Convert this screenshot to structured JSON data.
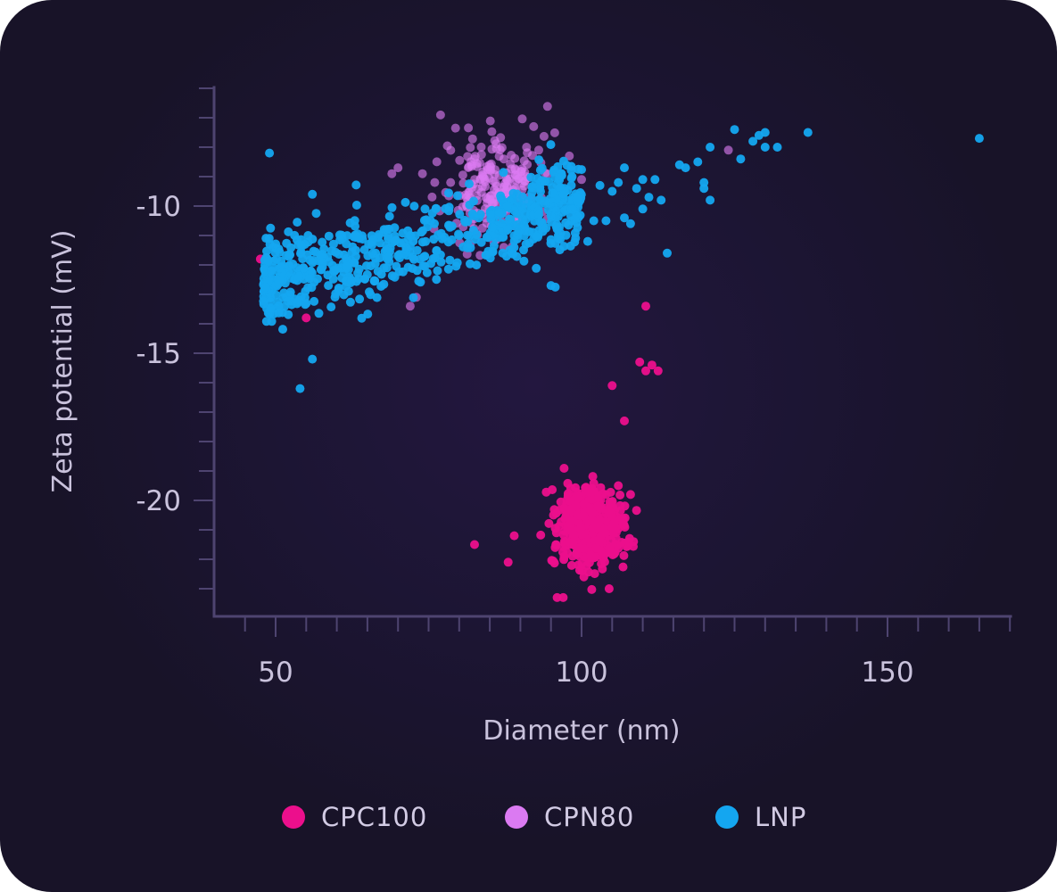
{
  "chart_data": {
    "type": "scatter",
    "title": "",
    "xlabel": "Diameter (nm)",
    "ylabel": "Zeta potential (mV)",
    "xlim": [
      40,
      170
    ],
    "ylim": [
      -24,
      -6
    ],
    "xticks": [
      50,
      100,
      150
    ],
    "yticks": [
      -10,
      -15,
      -20
    ],
    "xtick_labels": [
      "50",
      "100",
      "150"
    ],
    "ytick_labels": [
      "-10",
      "-15",
      "-20"
    ],
    "grid": false,
    "legend_position": "bottom",
    "series": [
      {
        "name": "CPC100",
        "color": "#ec0f8c",
        "cluster": {
          "n": 520,
          "cx": 101.5,
          "sx": 2.6,
          "cy": -20.9,
          "sy": 0.65
        },
        "points": [
          [
            47.5,
            -11.8
          ],
          [
            55,
            -13.8
          ],
          [
            82.5,
            -21.5
          ],
          [
            105,
            -16.1
          ],
          [
            107,
            -17.3
          ],
          [
            109.5,
            -15.3
          ],
          [
            110.5,
            -15.6
          ],
          [
            111.5,
            -15.4
          ],
          [
            112.5,
            -15.6
          ],
          [
            110.5,
            -13.4
          ],
          [
            96,
            -23.3
          ],
          [
            97,
            -23.3
          ],
          [
            104.5,
            -23.0
          ],
          [
            88,
            -22.1
          ],
          [
            89,
            -21.2
          ],
          [
            106,
            -19.5
          ],
          [
            108,
            -19.8
          ],
          [
            108.5,
            -21.4
          ]
        ]
      },
      {
        "name": "CPN80",
        "color": "#db7af2",
        "cluster": {
          "n": 220,
          "cx": 86.5,
          "sx": 4.2,
          "cy": -9.4,
          "sy": 0.9
        },
        "points": [
          [
            74,
            -8.9
          ],
          [
            76,
            -9.2
          ],
          [
            72,
            -13.4
          ],
          [
            73,
            -13.1
          ],
          [
            70,
            -8.7
          ],
          [
            69,
            -8.9
          ],
          [
            124,
            -8.1
          ],
          [
            98,
            -8.3
          ],
          [
            100,
            -9.1
          ],
          [
            93,
            -8.1
          ],
          [
            91,
            -8.0
          ]
        ]
      },
      {
        "name": "LNP",
        "color": "#14a6f0",
        "cluster": {
          "n": 680,
          "cx": 66,
          "sx": 10,
          "cy": -11.7,
          "sy": 0.85
        },
        "points": [
          [
            49,
            -8.2
          ],
          [
            54,
            -16.2
          ],
          [
            56,
            -15.2
          ],
          [
            56,
            -9.6
          ],
          [
            95,
            -12.7
          ],
          [
            97,
            -9.6
          ],
          [
            103,
            -9.3
          ],
          [
            105,
            -9.5
          ],
          [
            106,
            -9.2
          ],
          [
            107,
            -8.7
          ],
          [
            109,
            -9.4
          ],
          [
            110,
            -9.1
          ],
          [
            111,
            -9.7
          ],
          [
            112,
            -9.1
          ],
          [
            113,
            -9.8
          ],
          [
            114,
            -11.6
          ],
          [
            116,
            -8.6
          ],
          [
            117,
            -8.7
          ],
          [
            119,
            -8.5
          ],
          [
            120,
            -9.2
          ],
          [
            120,
            -9.4
          ],
          [
            121,
            -8.0
          ],
          [
            121,
            -9.8
          ],
          [
            125,
            -7.4
          ],
          [
            126,
            -8.4
          ],
          [
            128,
            -7.8
          ],
          [
            129,
            -7.6
          ],
          [
            130,
            -8.0
          ],
          [
            130,
            -7.5
          ],
          [
            132,
            -8.0
          ],
          [
            137,
            -7.5
          ],
          [
            165,
            -7.7
          ],
          [
            108,
            -10.6
          ],
          [
            110,
            -10.1
          ],
          [
            104,
            -10.5
          ],
          [
            107,
            -10.4
          ],
          [
            101,
            -11.2
          ],
          [
            102,
            -10.5
          ],
          [
            93,
            -10.3
          ]
        ]
      }
    ]
  }
}
